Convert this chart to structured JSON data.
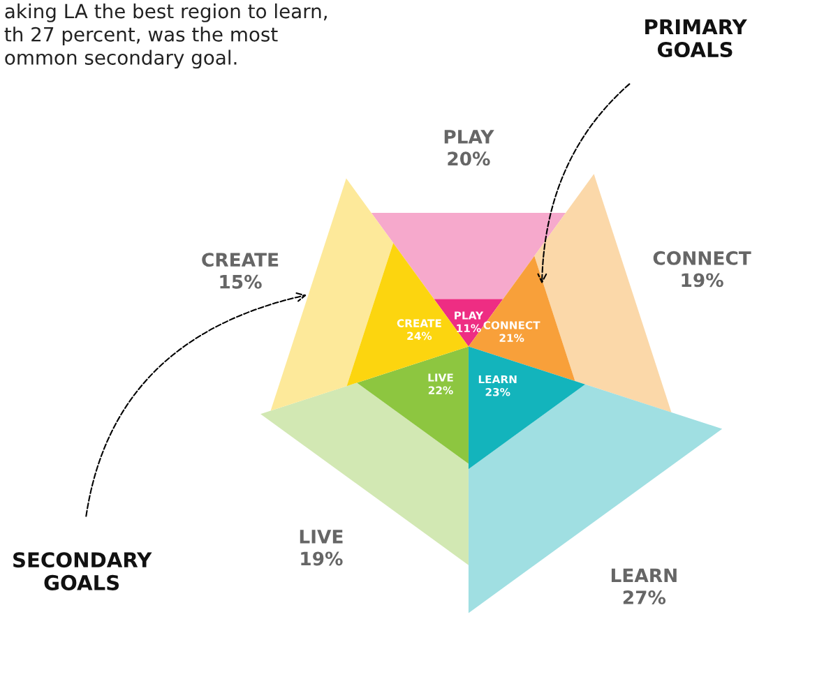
{
  "chart_data": {
    "type": "other",
    "categories": [
      "PLAY",
      "CONNECT",
      "LEARN",
      "LIVE",
      "CREATE"
    ],
    "series": [
      {
        "name": "PRIMARY GOALS",
        "colors": [
          "#ee2d83",
          "#f8a03a",
          "#13b4bc",
          "#8dc640",
          "#fcd50f"
        ],
        "values": [
          11,
          21,
          23,
          22,
          24
        ],
        "value_labels": [
          "11%",
          "21%",
          "23%",
          "22%",
          "24%"
        ]
      },
      {
        "name": "SECONDARY GOALS",
        "colors": [
          "#f6a9cc",
          "#fbd8a9",
          "#a0dfe2",
          "#d2e8b3",
          "#fde99a"
        ],
        "values": [
          20,
          19,
          27,
          19,
          15
        ],
        "value_labels": [
          "20%",
          "19%",
          "27%",
          "19%",
          "15%"
        ]
      }
    ],
    "annotations": [
      "aking LA the best region to learn,\nth 27 percent, was the most\nommon secondary goal."
    ]
  }
}
